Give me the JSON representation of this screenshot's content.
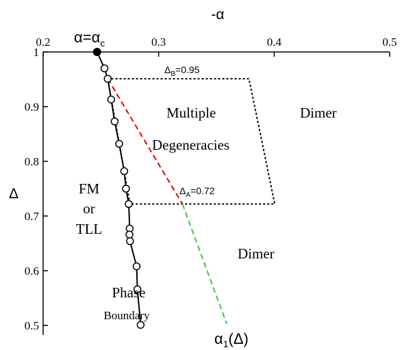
{
  "chart_data": {
    "type": "scatter",
    "title": "",
    "xlabel": "-α",
    "ylabel": "Δ",
    "xlim": [
      0.2,
      0.5
    ],
    "ylim": [
      0.5,
      1.0
    ],
    "x_ticks": [
      "0.2",
      "0.3",
      "0.4",
      "0.5"
    ],
    "y_ticks": [
      "1",
      "0.9",
      "0.8",
      "0.7",
      "0.6",
      "0.5"
    ],
    "x_tick_values": [
      0.2,
      0.3,
      0.4,
      0.5
    ],
    "y_tick_values": [
      1.0,
      0.9,
      0.8,
      0.7,
      0.6,
      0.5
    ],
    "grid": false,
    "series": [
      {
        "name": "Phase Boundary",
        "color": "#000000",
        "style": "solid-line-open-circles",
        "x": [
          0.2531,
          0.2559,
          0.2589,
          0.2619,
          0.2658,
          0.2702,
          0.2717,
          0.2741,
          0.2749,
          0.2747,
          0.2752,
          0.2809,
          0.2816,
          0.2844
        ],
        "y": [
          0.97,
          0.951,
          0.913,
          0.873,
          0.832,
          0.782,
          0.75,
          0.722,
          0.677,
          0.666,
          0.654,
          0.608,
          0.566,
          0.501
        ]
      },
      {
        "name": "",
        "color": "#e00000",
        "style": "dashed",
        "x": [
          0.2559,
          0.3206
        ],
        "y": [
          0.951,
          0.722
        ]
      },
      {
        "name": "",
        "color": "#30d030",
        "style": "dashed",
        "x": [
          0.3206,
          0.3589
        ],
        "y": [
          0.722,
          0.503
        ]
      },
      {
        "name": "",
        "color": "#000000",
        "style": "dotted-polygon",
        "x": [
          0.2559,
          0.3782,
          0.4005,
          0.2752,
          0.2559
        ],
        "y": [
          0.951,
          0.951,
          0.722,
          0.722,
          0.951
        ]
      }
    ],
    "critical_point": {
      "x": 0.2467,
      "y": 1.0
    }
  },
  "labels": {
    "alpha_c_main": "α=α",
    "alpha_c_sub": "c",
    "delta_b_main": "Δ",
    "delta_b_sub": "B",
    "delta_b_value": "=0.95",
    "delta_a_main": "Δ",
    "delta_a_sub": "A",
    "delta_a_value": "=0.72",
    "multiple": "Multiple",
    "degeneracies": "Degeneracies",
    "dimer_top": "Dimer",
    "dimer_mid": "Dimer",
    "fm": "FM",
    "or": "or",
    "tll": "TLL",
    "phase": "Phase",
    "boundary": "Boundary",
    "alpha1_main": "α",
    "alpha1_sub": "1",
    "alpha1_arg": "(Δ)"
  }
}
